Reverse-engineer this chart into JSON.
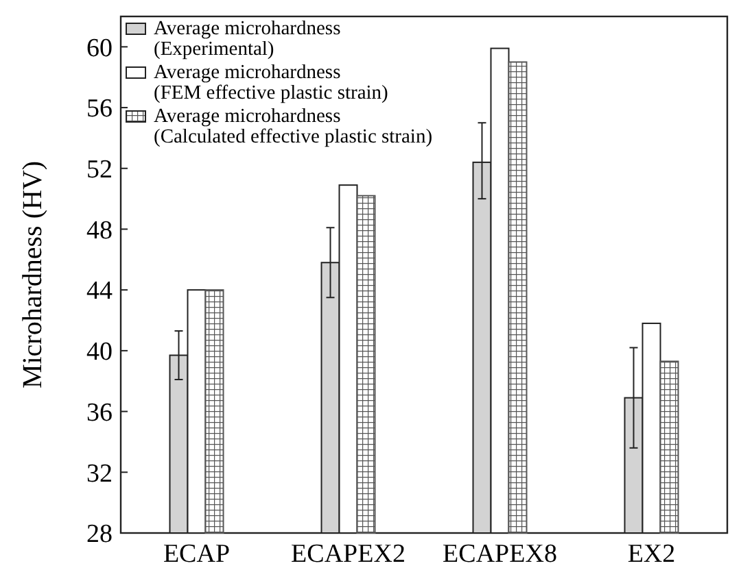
{
  "chart_data": {
    "type": "bar",
    "ylabel": "Microhardness (HV)",
    "categories": [
      "ECAP",
      "ECAPEX2",
      "ECAPEX8",
      "EX2"
    ],
    "series": [
      {
        "name": "Average microhardness\n(Experimental)",
        "color": "#d3d3d3",
        "values": [
          39.7,
          45.8,
          52.4,
          36.9
        ],
        "errors": [
          [
            38.1,
            41.3
          ],
          [
            43.5,
            48.1
          ],
          [
            50.0,
            55.0
          ],
          [
            33.6,
            40.2
          ]
        ]
      },
      {
        "name": "Average microhardness\n(FEM effective plastic strain)",
        "color": "#ffffff",
        "values": [
          44.0,
          50.9,
          59.9,
          41.8
        ]
      },
      {
        "name": "Average microhardness\n(Calculated effective plastic strain)",
        "color": "#555555",
        "values": [
          44.0,
          50.2,
          59.0,
          39.3
        ]
      }
    ],
    "ylim": [
      28,
      62
    ],
    "yticks": [
      28,
      32,
      36,
      40,
      44,
      48,
      52,
      56,
      60
    ],
    "legend": "top left"
  }
}
